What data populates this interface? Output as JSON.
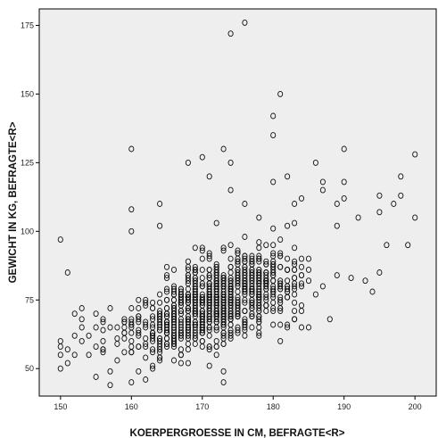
{
  "chart_data": {
    "type": "scatter",
    "title": "",
    "xlabel": "KOERPERGROESSE IN CM, BEFRAGTE<R>",
    "ylabel": "GEWICHT IN KG, BEFRAGTE<R>",
    "xlim": [
      147,
      203
    ],
    "ylim": [
      40,
      181
    ],
    "xticks": [
      150,
      160,
      170,
      180,
      190,
      200
    ],
    "yticks": [
      50,
      75,
      100,
      125,
      150,
      175
    ],
    "grid": false,
    "legend": "none",
    "colors": {
      "plot_background": "#eeeeee",
      "marker_stroke": "#111111",
      "axis": "#000000"
    },
    "points": [
      [
        176,
        176
      ],
      [
        174,
        172
      ],
      [
        181,
        150
      ],
      [
        180,
        142
      ],
      [
        180,
        135
      ],
      [
        173,
        130
      ],
      [
        160,
        130
      ],
      [
        190,
        130
      ],
      [
        200,
        128
      ],
      [
        170,
        127
      ],
      [
        168,
        125
      ],
      [
        174,
        125
      ],
      [
        186,
        125
      ],
      [
        171,
        120
      ],
      [
        182,
        120
      ],
      [
        198,
        120
      ],
      [
        187,
        118
      ],
      [
        180,
        118
      ],
      [
        190,
        118
      ],
      [
        174,
        115
      ],
      [
        187,
        115
      ],
      [
        198,
        113
      ],
      [
        195,
        113
      ],
      [
        190,
        112
      ],
      [
        184,
        112
      ],
      [
        164,
        110
      ],
      [
        197,
        110
      ],
      [
        183,
        110
      ],
      [
        176,
        110
      ],
      [
        189,
        110
      ],
      [
        160,
        108
      ],
      [
        192,
        105
      ],
      [
        195,
        107
      ],
      [
        200,
        105
      ],
      [
        183,
        103
      ],
      [
        178,
        105
      ],
      [
        189,
        102
      ],
      [
        172,
        103
      ],
      [
        164,
        102
      ],
      [
        160,
        100
      ],
      [
        150,
        97
      ],
      [
        151,
        85
      ],
      [
        153,
        72
      ],
      [
        153,
        68
      ],
      [
        194,
        78
      ],
      [
        193,
        82
      ],
      [
        195,
        85
      ],
      [
        199,
        95
      ],
      [
        196,
        95
      ],
      [
        184,
        65
      ],
      [
        185,
        65
      ],
      [
        176,
        62
      ],
      [
        182,
        66
      ],
      [
        188,
        68
      ],
      [
        173,
        45
      ],
      [
        173,
        49
      ],
      [
        157,
        44
      ],
      [
        160,
        45
      ],
      [
        162,
        46
      ],
      [
        155,
        47
      ],
      [
        150,
        50
      ],
      [
        150,
        55
      ],
      [
        150,
        58
      ],
      [
        150,
        60
      ],
      [
        151,
        52
      ],
      [
        151,
        57
      ],
      [
        152,
        55
      ],
      [
        152,
        62
      ],
      [
        152,
        70
      ],
      [
        153,
        60
      ],
      [
        153,
        65
      ],
      [
        154,
        55
      ],
      [
        154,
        62
      ],
      [
        155,
        58
      ],
      [
        155,
        65
      ],
      [
        155,
        70
      ],
      [
        156,
        60
      ],
      [
        156,
        67
      ],
      [
        157,
        65
      ],
      [
        157,
        72
      ]
    ]
  }
}
